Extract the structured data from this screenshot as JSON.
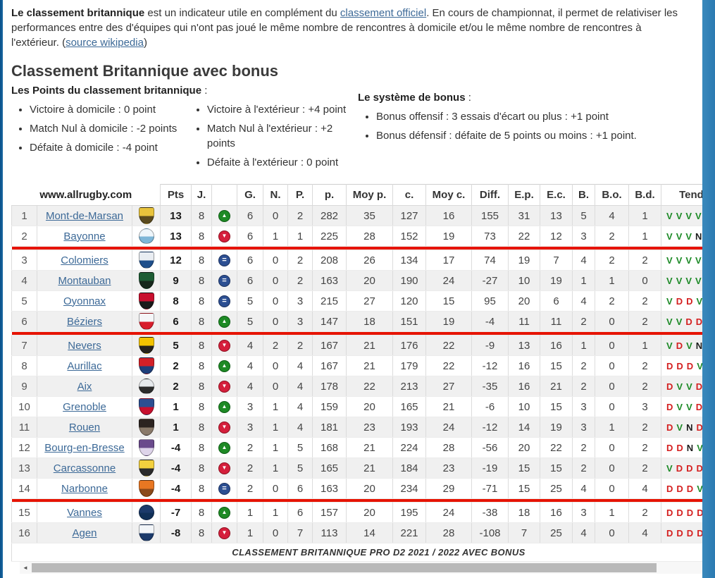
{
  "intro": {
    "bold_lead": "Le classement britannique",
    "after_bold": " est un indicateur utile en complément du ",
    "link_official": "classement officiel",
    "middle": ". En cours de championnat, il permet de relativiser les performances entre des d'équipes qui n'ont pas joué le même nombre de rencontres à domicile et/ou le même nombre de rencontres à l'extérieur. (",
    "link_wikipedia": "source wikipedia",
    "end": ")"
  },
  "heading": "Classement Britannique avec bonus",
  "points_block": {
    "title": "Les Points du classement britannique",
    "title_suffix": " :",
    "domicile": [
      "Victoire à domicile : 0 point",
      "Match Nul à domicile : -2 points",
      "Défaite à domicile : -4 point"
    ],
    "exterieur": [
      "Victoire à l'extérieur : +4 point",
      "Match Nul à l'extérieur : +2 points",
      "Défaite à l'extérieur : 0 point"
    ]
  },
  "bonus_block": {
    "title": "Le système de bonus",
    "title_suffix": " :",
    "items": [
      "Bonus offensif : 3 essais d'écart ou plus : +1 point",
      "Bonus défensif : défaite de 5 points ou moins : +1 point."
    ]
  },
  "table": {
    "brand": "www.allrugby.com",
    "columns": [
      "Pts",
      "J.",
      "",
      "G.",
      "N.",
      "P.",
      "p.",
      "Moy p.",
      "c.",
      "Moy c.",
      "Diff.",
      "E.p.",
      "E.c.",
      "B.",
      "B.o.",
      "B.d.",
      "Tendance"
    ],
    "caption": "CLASSEMENT BRITANNIQUE PRO D2 2021 / 2022 AVEC BONUS",
    "divider_after_ranks": [
      2,
      6,
      14
    ],
    "rows": [
      {
        "rank": 1,
        "team": "Mont-de-Marsan",
        "logo": {
          "shape": "shield",
          "c1": "#e8c33c",
          "c2": "#5a4a1e"
        },
        "pts": 13,
        "j": 8,
        "move": "up",
        "g": 6,
        "n": 0,
        "p": 2,
        "pp": 282,
        "moyp": 35,
        "c": 127,
        "moyc": 16,
        "diff": 155,
        "ep": 31,
        "ec": 13,
        "b": 5,
        "bo": 4,
        "bd": 1,
        "tend": [
          "V",
          "V",
          "V",
          "V"
        ]
      },
      {
        "rank": 2,
        "team": "Bayonne",
        "logo": {
          "shape": "circle",
          "c1": "#eef6fb",
          "c2": "#7db6d8"
        },
        "pts": 13,
        "j": 8,
        "move": "down",
        "g": 6,
        "n": 1,
        "p": 1,
        "pp": 225,
        "moyp": 28,
        "c": 152,
        "moyc": 19,
        "diff": 73,
        "ep": 22,
        "ec": 12,
        "b": 3,
        "bo": 2,
        "bd": 1,
        "tend": [
          "V",
          "V",
          "V",
          "N"
        ]
      },
      {
        "rank": 3,
        "team": "Colomiers",
        "logo": {
          "shape": "shield",
          "c1": "#e9edf2",
          "c2": "#1f4f8b"
        },
        "pts": 12,
        "j": 8,
        "move": "eq",
        "g": 6,
        "n": 0,
        "p": 2,
        "pp": 208,
        "moyp": 26,
        "c": 134,
        "moyc": 17,
        "diff": 74,
        "ep": 19,
        "ec": 7,
        "b": 4,
        "bo": 2,
        "bd": 2,
        "tend": [
          "V",
          "V",
          "V",
          "V"
        ]
      },
      {
        "rank": 4,
        "team": "Montauban",
        "logo": {
          "shape": "shield",
          "c1": "#1d5c34",
          "c2": "#16281c"
        },
        "pts": 9,
        "j": 8,
        "move": "eq",
        "g": 6,
        "n": 0,
        "p": 2,
        "pp": 163,
        "moyp": 20,
        "c": 190,
        "moyc": 24,
        "diff": -27,
        "ep": 10,
        "ec": 19,
        "b": 1,
        "bo": 1,
        "bd": 0,
        "tend": [
          "V",
          "V",
          "V",
          "V"
        ]
      },
      {
        "rank": 5,
        "team": "Oyonnax",
        "logo": {
          "shape": "shield",
          "c1": "#c8102e",
          "c2": "#1a1a1a"
        },
        "pts": 8,
        "j": 8,
        "move": "eq",
        "g": 5,
        "n": 0,
        "p": 3,
        "pp": 215,
        "moyp": 27,
        "c": 120,
        "moyc": 15,
        "diff": 95,
        "ep": 20,
        "ec": 6,
        "b": 4,
        "bo": 2,
        "bd": 2,
        "tend": [
          "V",
          "D",
          "D",
          "V"
        ]
      },
      {
        "rank": 6,
        "team": "Béziers",
        "logo": {
          "shape": "shield",
          "c1": "#f5f6f8",
          "c2": "#d81e2c"
        },
        "pts": 6,
        "j": 8,
        "move": "up",
        "g": 5,
        "n": 0,
        "p": 3,
        "pp": 147,
        "moyp": 18,
        "c": 151,
        "moyc": 19,
        "diff": -4,
        "ep": 11,
        "ec": 11,
        "b": 2,
        "bo": 0,
        "bd": 2,
        "tend": [
          "V",
          "V",
          "D",
          "D"
        ]
      },
      {
        "rank": 7,
        "team": "Nevers",
        "logo": {
          "shape": "shield",
          "c1": "#f3c300",
          "c2": "#26221c"
        },
        "pts": 5,
        "j": 8,
        "move": "down",
        "g": 4,
        "n": 2,
        "p": 2,
        "pp": 167,
        "moyp": 21,
        "c": 176,
        "moyc": 22,
        "diff": -9,
        "ep": 13,
        "ec": 16,
        "b": 1,
        "bo": 0,
        "bd": 1,
        "tend": [
          "V",
          "D",
          "V",
          "N"
        ]
      },
      {
        "rank": 8,
        "team": "Aurillac",
        "logo": {
          "shape": "shield",
          "c1": "#d32027",
          "c2": "#1f3f7a"
        },
        "pts": 2,
        "j": 8,
        "move": "up",
        "g": 4,
        "n": 0,
        "p": 4,
        "pp": 167,
        "moyp": 21,
        "c": 179,
        "moyc": 22,
        "diff": -12,
        "ep": 16,
        "ec": 15,
        "b": 2,
        "bo": 0,
        "bd": 2,
        "tend": [
          "D",
          "D",
          "D",
          "V"
        ]
      },
      {
        "rank": 9,
        "team": "Aix",
        "logo": {
          "shape": "circle",
          "c1": "#e6e9ec",
          "c2": "#2b2b2b"
        },
        "pts": 2,
        "j": 8,
        "move": "down",
        "g": 4,
        "n": 0,
        "p": 4,
        "pp": 178,
        "moyp": 22,
        "c": 213,
        "moyc": 27,
        "diff": -35,
        "ep": 16,
        "ec": 21,
        "b": 2,
        "bo": 0,
        "bd": 2,
        "tend": [
          "D",
          "V",
          "V",
          "D"
        ]
      },
      {
        "rank": 10,
        "team": "Grenoble",
        "logo": {
          "shape": "shield",
          "c1": "#2c4f92",
          "c2": "#c8102e"
        },
        "pts": 1,
        "j": 8,
        "move": "up",
        "g": 3,
        "n": 1,
        "p": 4,
        "pp": 159,
        "moyp": 20,
        "c": 165,
        "moyc": 21,
        "diff": -6,
        "ep": 10,
        "ec": 15,
        "b": 3,
        "bo": 0,
        "bd": 3,
        "tend": [
          "D",
          "V",
          "V",
          "D"
        ]
      },
      {
        "rank": 11,
        "team": "Rouen",
        "logo": {
          "shape": "shield",
          "c1": "#2b2320",
          "c2": "#8a7a6a"
        },
        "pts": 1,
        "j": 8,
        "move": "down",
        "g": 3,
        "n": 1,
        "p": 4,
        "pp": 181,
        "moyp": 23,
        "c": 193,
        "moyc": 24,
        "diff": -12,
        "ep": 14,
        "ec": 19,
        "b": 3,
        "bo": 1,
        "bd": 2,
        "tend": [
          "D",
          "V",
          "N",
          "D"
        ]
      },
      {
        "rank": 12,
        "team": "Bourg-en-Bresse",
        "logo": {
          "shape": "shield",
          "c1": "#6a4a8c",
          "c2": "#ded4ea"
        },
        "pts": -4,
        "j": 8,
        "move": "up",
        "g": 2,
        "n": 1,
        "p": 5,
        "pp": 168,
        "moyp": 21,
        "c": 224,
        "moyc": 28,
        "diff": -56,
        "ep": 20,
        "ec": 22,
        "b": 2,
        "bo": 0,
        "bd": 2,
        "tend": [
          "D",
          "D",
          "N",
          "V"
        ]
      },
      {
        "rank": 13,
        "team": "Carcassonne",
        "logo": {
          "shape": "shield",
          "c1": "#f3d03e",
          "c2": "#2b2b2b"
        },
        "pts": -4,
        "j": 8,
        "move": "down",
        "g": 2,
        "n": 1,
        "p": 5,
        "pp": 165,
        "moyp": 21,
        "c": 184,
        "moyc": 23,
        "diff": -19,
        "ep": 15,
        "ec": 15,
        "b": 2,
        "bo": 0,
        "bd": 2,
        "tend": [
          "V",
          "D",
          "D",
          "D"
        ]
      },
      {
        "rank": 14,
        "team": "Narbonne",
        "logo": {
          "shape": "shield",
          "c1": "#e87722",
          "c2": "#8c4a1a"
        },
        "pts": -4,
        "j": 8,
        "move": "eq",
        "g": 2,
        "n": 0,
        "p": 6,
        "pp": 163,
        "moyp": 20,
        "c": 234,
        "moyc": 29,
        "diff": -71,
        "ep": 15,
        "ec": 25,
        "b": 4,
        "bo": 0,
        "bd": 4,
        "tend": [
          "D",
          "D",
          "D",
          "V"
        ]
      },
      {
        "rank": 15,
        "team": "Vannes",
        "logo": {
          "shape": "circle",
          "c1": "#1b3a6b",
          "c2": "#103058"
        },
        "pts": -7,
        "j": 8,
        "move": "up",
        "g": 1,
        "n": 1,
        "p": 6,
        "pp": 157,
        "moyp": 20,
        "c": 195,
        "moyc": 24,
        "diff": -38,
        "ep": 18,
        "ec": 16,
        "b": 3,
        "bo": 1,
        "bd": 2,
        "tend": [
          "D",
          "D",
          "D",
          "D"
        ]
      },
      {
        "rank": 16,
        "team": "Agen",
        "logo": {
          "shape": "shield",
          "c1": "#f2f5f8",
          "c2": "#1b3a6b"
        },
        "pts": -8,
        "j": 8,
        "move": "down",
        "g": 1,
        "n": 0,
        "p": 7,
        "pp": 113,
        "moyp": 14,
        "c": 221,
        "moyc": 28,
        "diff": -108,
        "ep": 7,
        "ec": 25,
        "b": 4,
        "bo": 0,
        "bd": 4,
        "tend": [
          "D",
          "D",
          "D",
          "D"
        ]
      }
    ]
  },
  "colors": {
    "divider_red": "#e61301",
    "link_blue": "#3c6997",
    "win_green": "#1d8a27",
    "loss_red": "#d42020",
    "draw_black": "#1c1c1c",
    "move_up_green": "#1e8a25",
    "move_down_red": "#d51f3c",
    "move_equal_blue": "#2c4f92"
  },
  "scrollbar": {
    "left_arrow": "◄",
    "right_arrow": "►"
  }
}
